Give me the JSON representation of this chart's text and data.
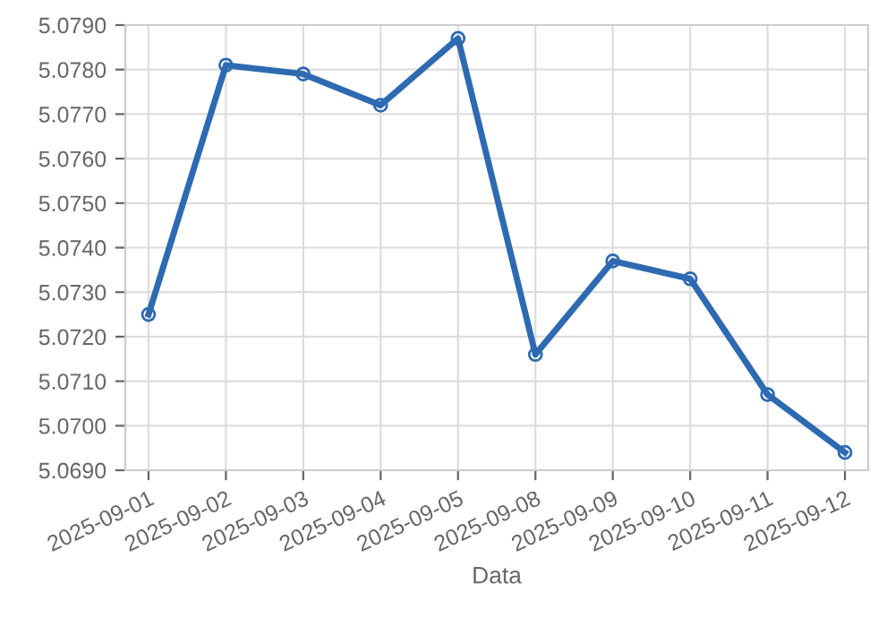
{
  "chart_data": {
    "type": "line",
    "xlabel": "Data",
    "categories": [
      "2025-09-01",
      "2025-09-02",
      "2025-09-03",
      "2025-09-04",
      "2025-09-05",
      "2025-09-08",
      "2025-09-09",
      "2025-09-10",
      "2025-09-11",
      "2025-09-12"
    ],
    "series": [
      {
        "color": "#2e6ab1",
        "values": [
          5.0725,
          5.0781,
          5.0779,
          5.0772,
          5.0787,
          5.0716,
          5.0737,
          5.0733,
          5.0707,
          5.0694
        ]
      }
    ],
    "ylim": [
      5.069,
      5.079
    ],
    "yticks": [
      {
        "value": 5.069,
        "label": "5.0690"
      },
      {
        "value": 5.07,
        "label": "5.0700"
      },
      {
        "value": 5.071,
        "label": "5.0710"
      },
      {
        "value": 5.072,
        "label": "5.0720"
      },
      {
        "value": 5.073,
        "label": "5.0730"
      },
      {
        "value": 5.074,
        "label": "5.0740"
      },
      {
        "value": 5.075,
        "label": "5.0750"
      },
      {
        "value": 5.076,
        "label": "5.0760"
      },
      {
        "value": 5.077,
        "label": "5.0770"
      },
      {
        "value": 5.078,
        "label": "5.0780"
      },
      {
        "value": 5.079,
        "label": "5.0790"
      }
    ],
    "grid": true,
    "marker": "circle",
    "line_style": "solid",
    "legend": false
  }
}
